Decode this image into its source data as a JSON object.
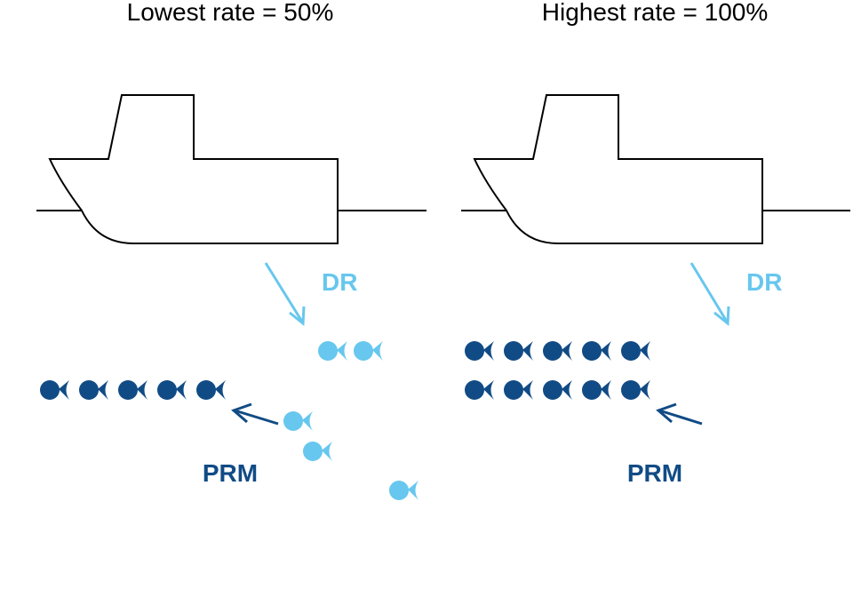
{
  "colors": {
    "light": "#67C7EE",
    "dark": "#114B85",
    "outline": "#000000"
  },
  "icons": {
    "fish": "fish-icon",
    "arrow": "arrow-icon",
    "ship": "ship-icon"
  },
  "panels": [
    {
      "title": "Lowest rate = 50%",
      "discard_label": "DR",
      "retained_label": "PRM",
      "discarded_fish": 5,
      "retained_fish": 5
    },
    {
      "title": "Highest rate = 100%",
      "discard_label": "DR",
      "retained_label": "PRM",
      "discarded_fish": 0,
      "retained_fish": 10
    }
  ]
}
